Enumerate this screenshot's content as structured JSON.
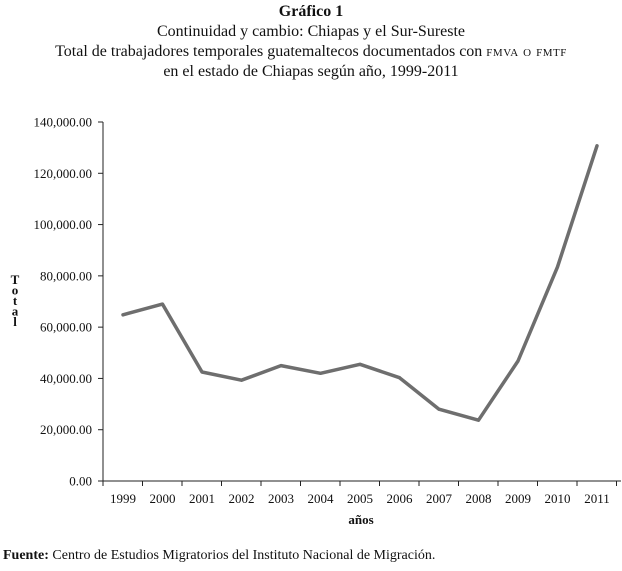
{
  "header": {
    "label": "Gráfico 1",
    "subtitle": "Continuidad y cambio: Chiapas y el Sur-Sureste",
    "title_line1_prefix": "Total de trabajadores temporales guatemaltecos documentados con",
    "title_line1_acronym": "fmva o fmtf",
    "title_line2": "en el estado de Chiapas según año, 1999-2011"
  },
  "source": {
    "label": "Fuente:",
    "text": "Centro de Estudios Migratorios del Instituto Nacional de Migración."
  },
  "chart_data": {
    "type": "line",
    "title": "Total de trabajadores temporales guatemaltecos documentados con FMVA o FMTF en el estado de Chiapas según año, 1999-2011",
    "xlabel": "años",
    "ylabel": "Total",
    "categories": [
      "1999",
      "2000",
      "2001",
      "2002",
      "2003",
      "2004",
      "2005",
      "2006",
      "2007",
      "2008",
      "2009",
      "2010",
      "2011"
    ],
    "series": [
      {
        "values": [
          64800,
          69000,
          42500,
          39300,
          45000,
          42000,
          45500,
          40300,
          28000,
          23700,
          46800,
          83500,
          130700
        ]
      }
    ],
    "ylim": [
      0,
      140000
    ],
    "yticks": [
      0,
      20000,
      40000,
      60000,
      80000,
      100000,
      120000,
      140000
    ],
    "ytick_labels": [
      "0.00",
      "20,000.00",
      "40,000.00",
      "60,000.00",
      "80,000.00",
      "100,000.00",
      "120,000.00",
      "140,000.00"
    ],
    "grid": false,
    "line_color": "#6e6e6e",
    "axis_color": "#222222"
  }
}
